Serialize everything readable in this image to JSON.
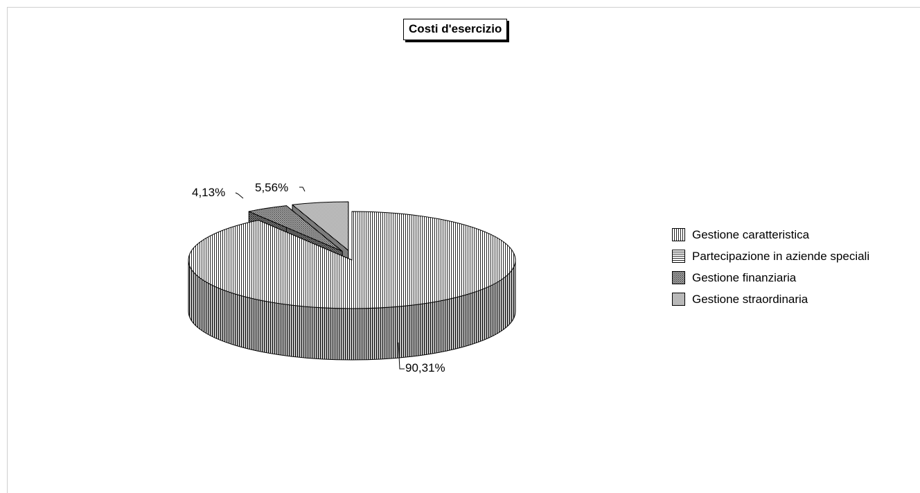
{
  "chart_data": {
    "type": "pie",
    "title": "Costi d'esercizio",
    "categories": [
      "Gestione caratteristica",
      "Partecipazione in aziende speciali",
      "Gestione finanziaria",
      "Gestione straordinaria"
    ],
    "values": [
      90.31,
      0.0,
      4.13,
      5.56
    ],
    "data_labels": [
      "90,31%",
      "",
      "4,13%",
      "5,56%"
    ],
    "three_d": true,
    "exploded": true,
    "legend_position": "right",
    "patterns": [
      "vertical-lines",
      "horizontal-lines",
      "crosshatch",
      "fine-crosshatch"
    ]
  }
}
